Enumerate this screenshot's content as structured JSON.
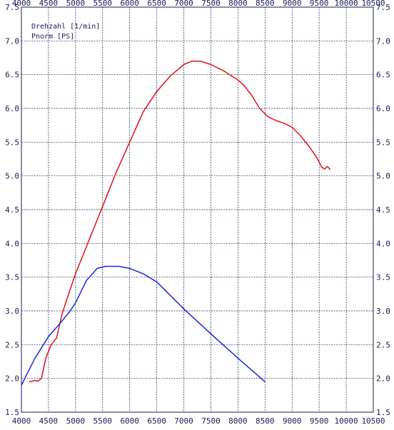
{
  "chart_data": {
    "type": "line",
    "xlim": [
      4000,
      10500
    ],
    "ylim": [
      1.5,
      7.5
    ],
    "x_ticks": [
      "4000",
      "4500",
      "5000",
      "5500",
      "6000",
      "6500",
      "7000",
      "7500",
      "8000",
      "8500",
      "9000",
      "9500",
      "10000",
      "10500"
    ],
    "y_ticks_left": [
      "1.5",
      "2.0",
      "2.5",
      "3.0",
      "3.5",
      "4.0",
      "4.5",
      "5.0",
      "5.5",
      "6.0",
      "6.5",
      "7.0",
      "7.5"
    ],
    "y_ticks_right": [
      "1.5",
      "2.0",
      "2.5",
      "3.0",
      "3.5",
      "4.0",
      "4.5",
      "5.0",
      "5.5",
      "6.0",
      "6.5",
      "7.0",
      "7.5"
    ],
    "legend": [
      "Drehzahl [1/min]",
      "Pnorm [PS]"
    ],
    "legend_position": "top-left",
    "grid": true,
    "series": [
      {
        "color": "#e0101a",
        "points": [
          [
            4150,
            1.95
          ],
          [
            4250,
            1.97
          ],
          [
            4300,
            1.96
          ],
          [
            4370,
            2.0
          ],
          [
            4450,
            2.3
          ],
          [
            4550,
            2.5
          ],
          [
            4650,
            2.6
          ],
          [
            4750,
            2.95
          ],
          [
            4850,
            3.2
          ],
          [
            5000,
            3.55
          ],
          [
            5250,
            4.05
          ],
          [
            5500,
            4.55
          ],
          [
            5750,
            5.05
          ],
          [
            6000,
            5.5
          ],
          [
            6250,
            5.95
          ],
          [
            6500,
            6.25
          ],
          [
            6750,
            6.48
          ],
          [
            7000,
            6.65
          ],
          [
            7150,
            6.7
          ],
          [
            7300,
            6.7
          ],
          [
            7500,
            6.65
          ],
          [
            7750,
            6.55
          ],
          [
            8000,
            6.42
          ],
          [
            8100,
            6.35
          ],
          [
            8250,
            6.2
          ],
          [
            8400,
            6.0
          ],
          [
            8550,
            5.88
          ],
          [
            8700,
            5.82
          ],
          [
            8850,
            5.78
          ],
          [
            9000,
            5.72
          ],
          [
            9150,
            5.6
          ],
          [
            9300,
            5.45
          ],
          [
            9450,
            5.28
          ],
          [
            9550,
            5.13
          ],
          [
            9600,
            5.1
          ],
          [
            9650,
            5.14
          ],
          [
            9700,
            5.1
          ]
        ]
      },
      {
        "color": "#1628e0",
        "points": [
          [
            4000,
            1.9
          ],
          [
            4250,
            2.3
          ],
          [
            4500,
            2.62
          ],
          [
            4750,
            2.85
          ],
          [
            4900,
            3.0
          ],
          [
            5000,
            3.12
          ],
          [
            5200,
            3.45
          ],
          [
            5400,
            3.63
          ],
          [
            5550,
            3.66
          ],
          [
            5800,
            3.66
          ],
          [
            6000,
            3.63
          ],
          [
            6250,
            3.55
          ],
          [
            6500,
            3.43
          ],
          [
            7000,
            3.03
          ],
          [
            7500,
            2.66
          ],
          [
            8000,
            2.3
          ],
          [
            8500,
            1.95
          ]
        ]
      }
    ]
  }
}
